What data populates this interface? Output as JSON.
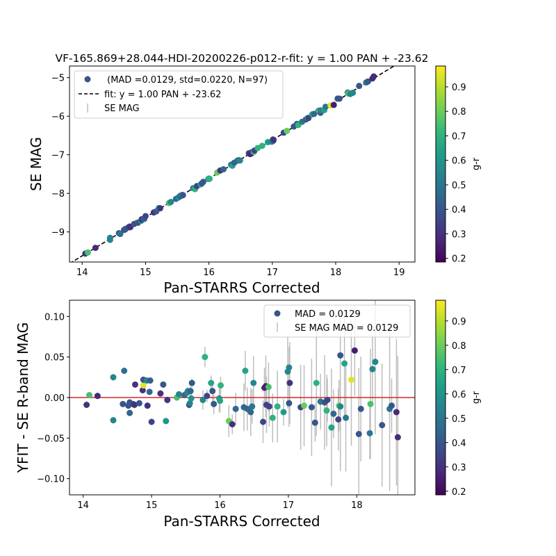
{
  "chart_data": [
    {
      "type": "scatter",
      "title": "VF-165.869+28.044-HDI-20200226-p012-r-fit: y = 1.00 PAN + -23.62",
      "xlabel": "Pan-STARRS Corrected",
      "ylabel": "SE MAG",
      "xlim": [
        13.8,
        19.25
      ],
      "ylim": [
        -9.78,
        -4.7
      ],
      "xticks": [
        14,
        15,
        16,
        17,
        18,
        19
      ],
      "yticks": [
        -9,
        -8,
        -7,
        -6,
        -5
      ],
      "legend_position": "top-left",
      "legend": [
        {
          "kind": "marker",
          "label": " (MAD =0.0129, std=0.0220, N=97)",
          "color": "#3b528b"
        },
        {
          "kind": "dashed-line",
          "label": "fit: y = 1.00 PAN + -23.62",
          "color": "#000000"
        },
        {
          "kind": "errorbar",
          "label": "SE MAG",
          "color": "#bdbdbd"
        }
      ],
      "fit_line": {
        "slope": 1.0,
        "intercept": -23.62
      }
    },
    {
      "type": "scatter",
      "xlabel": "Pan-STARRS Corrected",
      "ylabel": "YFIT - SE R-band MAG",
      "xlim": [
        13.8,
        18.85
      ],
      "ylim": [
        -0.12,
        0.12
      ],
      "xticks": [
        14,
        15,
        16,
        17,
        18
      ],
      "yticks": [
        -0.1,
        -0.05,
        0.0,
        0.05,
        0.1
      ],
      "ytick_labels": [
        "−0.10",
        "−0.05",
        "0.00",
        "0.05",
        "0.10"
      ],
      "legend_position": "top-right",
      "legend": [
        {
          "kind": "marker",
          "label": "MAD = 0.0129",
          "color": "#3b528b"
        },
        {
          "kind": "errorbar",
          "label": "SE MAG MAD = 0.0129",
          "color": "#bdbdbd"
        }
      ],
      "zero_line_color": "#d62728",
      "points": [
        [
          14.05,
          -0.009,
          0.3
        ],
        [
          14.09,
          0.003,
          0.75
        ],
        [
          14.21,
          0.002,
          0.28
        ],
        [
          14.44,
          0.025,
          0.55
        ],
        [
          14.44,
          -0.028,
          0.55
        ],
        [
          14.58,
          -0.008,
          0.4
        ],
        [
          14.6,
          0.033,
          0.48
        ],
        [
          14.66,
          -0.01,
          0.4
        ],
        [
          14.68,
          -0.019,
          0.45
        ],
        [
          14.68,
          -0.006,
          0.4
        ],
        [
          14.73,
          -0.008,
          0.38
        ],
        [
          14.75,
          -0.009,
          0.3
        ],
        [
          14.76,
          0.016,
          0.3
        ],
        [
          14.82,
          -0.007,
          0.4
        ],
        [
          14.87,
          0.009,
          0.3
        ],
        [
          14.88,
          0.015,
          0.95
        ],
        [
          14.88,
          0.022,
          0.4
        ],
        [
          14.93,
          0.021,
          0.55
        ],
        [
          14.94,
          -0.01,
          0.3
        ],
        [
          14.97,
          0.007,
          0.45
        ],
        [
          14.98,
          0.021,
          0.42
        ],
        [
          15.0,
          -0.03,
          0.35
        ],
        [
          15.13,
          0.005,
          0.3
        ],
        [
          15.17,
          0.016,
          0.4
        ],
        [
          15.21,
          -0.029,
          0.6
        ],
        [
          15.23,
          -0.003,
          0.3
        ],
        [
          15.37,
          0.0,
          0.75
        ],
        [
          15.4,
          0.004,
          0.55
        ],
        [
          15.48,
          0.003,
          0.45
        ],
        [
          15.52,
          0.006,
          0.55
        ],
        [
          15.53,
          0.008,
          0.55
        ],
        [
          15.55,
          -0.009,
          0.35
        ],
        [
          15.56,
          -0.007,
          0.55
        ],
        [
          15.57,
          0.008,
          0.45
        ],
        [
          15.58,
          -0.001,
          0.6
        ],
        [
          15.59,
          0.018,
          0.4
        ],
        [
          15.75,
          -0.003,
          0.55
        ],
        [
          15.78,
          0.05,
          0.7
        ],
        [
          15.81,
          0.002,
          0.35
        ],
        [
          15.87,
          0.018,
          0.65
        ],
        [
          15.89,
          0.008,
          0.4
        ],
        [
          15.91,
          -0.008,
          0.4
        ],
        [
          15.99,
          -0.001,
          0.6
        ],
        [
          16.0,
          -0.004,
          0.65
        ],
        [
          16.01,
          0.015,
          0.7
        ],
        [
          16.13,
          -0.029,
          0.8
        ],
        [
          16.18,
          -0.033,
          0.3
        ],
        [
          16.23,
          -0.014,
          0.45
        ],
        [
          16.35,
          -0.012,
          0.45
        ],
        [
          16.37,
          0.033,
          0.65
        ],
        [
          16.4,
          -0.014,
          0.45
        ],
        [
          16.45,
          -0.018,
          0.45
        ],
        [
          16.47,
          -0.011,
          0.5
        ],
        [
          16.49,
          0.018,
          0.55
        ],
        [
          16.63,
          -0.03,
          0.35
        ],
        [
          16.65,
          0.012,
          0.28
        ],
        [
          16.67,
          0.014,
          0.25
        ],
        [
          16.68,
          -0.009,
          0.35
        ],
        [
          16.71,
          0.013,
          0.75
        ],
        [
          16.72,
          -0.011,
          0.35
        ],
        [
          16.77,
          -0.025,
          0.7
        ],
        [
          16.84,
          -0.011,
          0.7
        ],
        [
          16.93,
          -0.018,
          0.62
        ],
        [
          16.99,
          0.032,
          0.55
        ],
        [
          17.01,
          -0.007,
          0.4
        ],
        [
          17.01,
          0.037,
          0.55
        ],
        [
          17.02,
          0.018,
          0.3
        ],
        [
          17.18,
          -0.012,
          0.35
        ],
        [
          17.23,
          -0.01,
          0.8
        ],
        [
          17.34,
          -0.012,
          0.4
        ],
        [
          17.39,
          -0.031,
          0.4
        ],
        [
          17.41,
          0.018,
          0.7
        ],
        [
          17.47,
          -0.005,
          0.5
        ],
        [
          17.53,
          -0.006,
          0.4
        ],
        [
          17.56,
          -0.016,
          0.7
        ],
        [
          17.57,
          -0.003,
          0.35
        ],
        [
          17.63,
          -0.037,
          0.65
        ],
        [
          17.66,
          -0.02,
          0.45
        ],
        [
          17.73,
          -0.027,
          0.35
        ],
        [
          17.74,
          -0.01,
          0.8
        ],
        [
          17.76,
          0.052,
          0.4
        ],
        [
          17.76,
          -0.011,
          0.55
        ],
        [
          17.82,
          0.042,
          0.65
        ],
        [
          17.84,
          -0.025,
          0.5
        ],
        [
          17.92,
          0.022,
          0.95
        ],
        [
          17.97,
          0.058,
          0.25
        ],
        [
          18.03,
          -0.045,
          0.4
        ],
        [
          18.06,
          -0.014,
          0.4
        ],
        [
          18.19,
          -0.044,
          0.5
        ],
        [
          18.2,
          -0.008,
          0.75
        ],
        [
          18.23,
          0.035,
          0.55
        ],
        [
          18.27,
          0.044,
          0.55
        ],
        [
          18.37,
          -0.034,
          0.4
        ],
        [
          18.48,
          -0.014,
          0.5
        ],
        [
          18.51,
          -0.01,
          0.4
        ],
        [
          18.58,
          -0.018,
          0.28
        ],
        [
          18.6,
          -0.049,
          0.28
        ]
      ]
    }
  ],
  "colorbar": {
    "label": "g-r",
    "vmin": 0.185,
    "vmax": 0.985,
    "ticks": [
      0.2,
      0.3,
      0.4,
      0.5,
      0.6,
      0.7,
      0.8,
      0.9
    ],
    "colormap": "viridis",
    "stops": [
      "#440154",
      "#482878",
      "#3e4989",
      "#31688e",
      "#26828e",
      "#1f9e89",
      "#35b779",
      "#6ece58",
      "#b5de2b",
      "#fde725"
    ]
  }
}
